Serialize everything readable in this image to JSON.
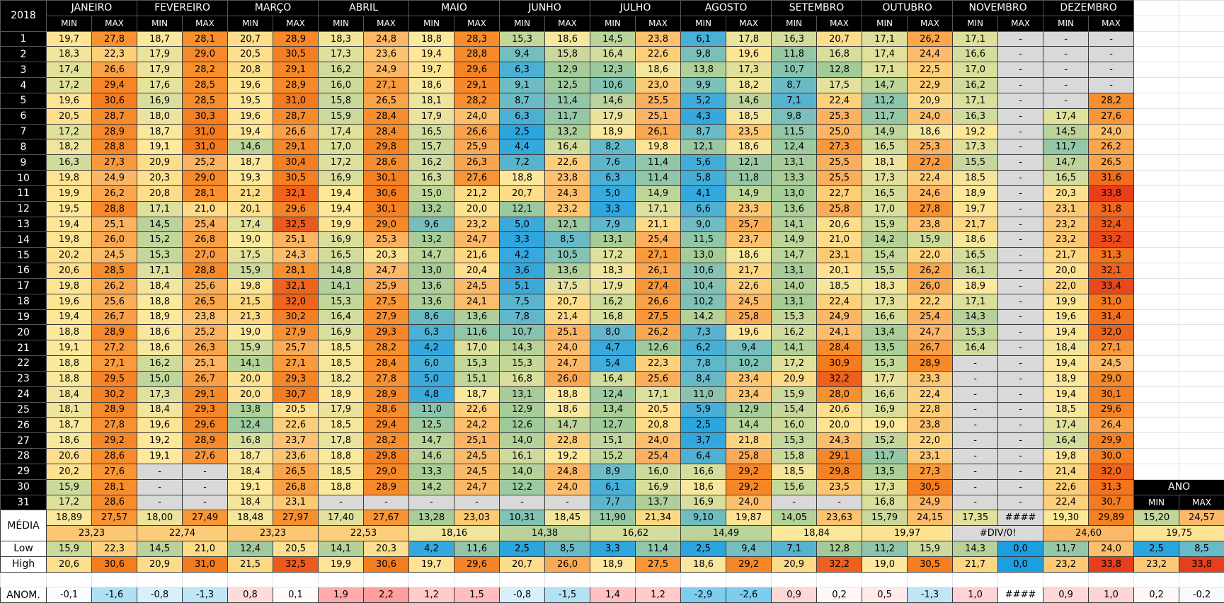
{
  "year": "2018",
  "column_labels": [
    "MIN",
    "MAX"
  ],
  "days": [
    1,
    2,
    3,
    4,
    5,
    6,
    7,
    8,
    9,
    10,
    11,
    12,
    13,
    14,
    15,
    16,
    17,
    18,
    19,
    20,
    21,
    22,
    23,
    24,
    25,
    26,
    27,
    28,
    29,
    30,
    31
  ],
  "row_labels": {
    "media": "MÉDIA",
    "low": "Low",
    "high": "High",
    "anom": "ANOM."
  },
  "months": [
    {
      "name": "JANEIRO",
      "min": [
        "19,7",
        "18,3",
        "17,4",
        "17,2",
        "19,6",
        "20,5",
        "17,2",
        "18,2",
        "16,3",
        "19,8",
        "19,9",
        "19,5",
        "19,4",
        "19,8",
        "20,2",
        "20,6",
        "19,8",
        "19,6",
        "19,4",
        "18,8",
        "19,1",
        "18,8",
        "18,8",
        "18,4",
        "18,1",
        "18,7",
        "18,6",
        "20,6",
        "20,2",
        "15,9",
        "17,2"
      ],
      "max": [
        "27,8",
        "22,3",
        "26,6",
        "29,4",
        "30,6",
        "28,7",
        "28,9",
        "28,8",
        "27,3",
        "24,9",
        "26,2",
        "28,8",
        "25,1",
        "26,0",
        "24,5",
        "28,5",
        "26,2",
        "25,6",
        "26,7",
        "28,9",
        "27,2",
        "27,1",
        "29,5",
        "30,2",
        "28,9",
        "27,8",
        "29,2",
        "28,6",
        "27,6",
        "28,1",
        "28,6"
      ],
      "media_min": "18,89",
      "media_max": "27,57",
      "media": "23,23",
      "low_min": "15,9",
      "low_max": "22,3",
      "high_min": "20,6",
      "high_max": "30,6",
      "anom_min": "-0,1",
      "anom_max": "-1,6"
    },
    {
      "name": "FEVEREIRO",
      "min": [
        "18,7",
        "17,9",
        "17,9",
        "17,6",
        "16,9",
        "18,0",
        "18,7",
        "19,1",
        "20,9",
        "20,3",
        "20,8",
        "17,1",
        "14,5",
        "15,2",
        "15,3",
        "17,1",
        "18,4",
        "18,8",
        "18,9",
        "18,6",
        "18,6",
        "16,2",
        "15,0",
        "17,3",
        "18,4",
        "19,6",
        "19,2",
        "19,1",
        "-",
        "-",
        "-"
      ],
      "max": [
        "28,1",
        "29,0",
        "28,2",
        "28,5",
        "28,5",
        "30,3",
        "31,0",
        "31,0",
        "25,2",
        "29,0",
        "28,1",
        "21,0",
        "25,4",
        "26,8",
        "27,0",
        "28,8",
        "25,6",
        "26,5",
        "23,8",
        "25,2",
        "26,3",
        "25,1",
        "26,7",
        "29,1",
        "29,3",
        "29,6",
        "28,9",
        "27,6",
        "-",
        "-",
        "-"
      ],
      "media_min": "18,00",
      "media_max": "27,49",
      "media": "22,74",
      "low_min": "14,5",
      "low_max": "21,0",
      "high_min": "20,9",
      "high_max": "31,0",
      "anom_min": "-0,8",
      "anom_max": "-1,3"
    },
    {
      "name": "MARÇO",
      "min": [
        "20,7",
        "20,5",
        "20,8",
        "19,6",
        "19,5",
        "19,6",
        "19,4",
        "14,6",
        "18,7",
        "19,3",
        "21,2",
        "20,1",
        "17,4",
        "19,0",
        "17,5",
        "15,9",
        "19,8",
        "21,5",
        "21,3",
        "19,0",
        "15,9",
        "14,1",
        "20,0",
        "20,0",
        "13,8",
        "12,4",
        "16,8",
        "18,7",
        "18,4",
        "19,1",
        "18,4"
      ],
      "max": [
        "28,9",
        "30,5",
        "29,1",
        "28,9",
        "31,0",
        "28,7",
        "26,6",
        "29,1",
        "30,4",
        "30,5",
        "32,1",
        "29,6",
        "32,5",
        "25,1",
        "24,3",
        "28,1",
        "32,1",
        "32,0",
        "30,2",
        "27,9",
        "25,7",
        "27,1",
        "29,3",
        "30,7",
        "20,5",
        "22,6",
        "23,7",
        "23,6",
        "26,5",
        "26,8",
        "23,1"
      ],
      "media_min": "18,48",
      "media_max": "27,97",
      "media": "23,23",
      "low_min": "12,4",
      "low_max": "20,5",
      "high_min": "21,5",
      "high_max": "32,5",
      "anom_min": "0,8",
      "anom_max": "0,1"
    },
    {
      "name": "ABRIL",
      "min": [
        "18,3",
        "17,3",
        "16,2",
        "16,0",
        "15,8",
        "15,9",
        "17,4",
        "17,0",
        "17,2",
        "16,9",
        "19,4",
        "19,4",
        "19,9",
        "16,9",
        "16,5",
        "14,8",
        "14,1",
        "15,3",
        "16,4",
        "16,9",
        "18,5",
        "18,5",
        "18,2",
        "18,9",
        "17,9",
        "18,5",
        "17,8",
        "18,8",
        "18,5",
        "18,8",
        "-"
      ],
      "max": [
        "24,8",
        "23,6",
        "24,9",
        "27,1",
        "26,5",
        "28,4",
        "28,4",
        "29,8",
        "28,6",
        "30,1",
        "30,6",
        "30,1",
        "29,0",
        "25,3",
        "20,3",
        "24,7",
        "25,9",
        "27,5",
        "27,9",
        "29,3",
        "28,2",
        "28,4",
        "27,8",
        "28,9",
        "28,6",
        "29,4",
        "28,2",
        "29,8",
        "29,0",
        "28,9",
        "-"
      ],
      "media_min": "17,40",
      "media_max": "27,67",
      "media": "22,53",
      "low_min": "14,1",
      "low_max": "20,3",
      "high_min": "19,9",
      "high_max": "30,6",
      "anom_min": "1,9",
      "anom_max": "2,2"
    },
    {
      "name": "MAIO",
      "min": [
        "18,8",
        "19,4",
        "19,7",
        "18,6",
        "18,1",
        "17,9",
        "16,5",
        "15,7",
        "16,2",
        "16,3",
        "15,0",
        "13,2",
        "9,6",
        "13,2",
        "14,7",
        "13,0",
        "13,6",
        "13,6",
        "8,6",
        "6,3",
        "4,2",
        "6,0",
        "5,0",
        "4,8",
        "11,0",
        "12,5",
        "14,7",
        "14,6",
        "13,3",
        "14,2",
        "-"
      ],
      "max": [
        "28,3",
        "28,8",
        "29,6",
        "29,1",
        "28,2",
        "24,0",
        "26,6",
        "25,9",
        "26,3",
        "27,6",
        "21,2",
        "20,0",
        "23,2",
        "24,7",
        "21,6",
        "20,4",
        "24,5",
        "24,1",
        "13,6",
        "11,6",
        "17,0",
        "15,3",
        "15,1",
        "18,7",
        "22,6",
        "24,2",
        "25,1",
        "24,5",
        "24,5",
        "24,7",
        "-"
      ],
      "media_min": "13,28",
      "media_max": "23,03",
      "media": "18,16",
      "low_min": "4,2",
      "low_max": "11,6",
      "high_min": "19,7",
      "high_max": "29,6",
      "anom_min": "1,2",
      "anom_max": "1,5"
    },
    {
      "name": "JUNHO",
      "min": [
        "15,3",
        "9,4",
        "6,3",
        "9,1",
        "8,7",
        "6,3",
        "2,5",
        "4,4",
        "7,2",
        "18,8",
        "20,7",
        "12,1",
        "5,0",
        "3,3",
        "4,2",
        "3,6",
        "5,1",
        "7,5",
        "7,8",
        "10,7",
        "14,3",
        "15,3",
        "16,8",
        "13,1",
        "12,9",
        "12,6",
        "14,0",
        "16,1",
        "14,0",
        "12,2",
        "-"
      ],
      "max": [
        "18,6",
        "15,8",
        "12,9",
        "12,5",
        "11,4",
        "11,7",
        "13,2",
        "16,4",
        "22,6",
        "23,8",
        "24,3",
        "23,2",
        "12,1",
        "8,5",
        "10,5",
        "13,6",
        "17,5",
        "20,7",
        "21,4",
        "25,1",
        "24,0",
        "24,7",
        "26,0",
        "18,8",
        "18,6",
        "14,7",
        "22,8",
        "19,2",
        "24,8",
        "24,0",
        "-"
      ],
      "media_min": "10,31",
      "media_max": "18,45",
      "media": "14,38",
      "low_min": "2,5",
      "low_max": "8,5",
      "high_min": "20,7",
      "high_max": "26,0",
      "anom_min": "-0,8",
      "anom_max": "-1,5"
    },
    {
      "name": "JULHO",
      "min": [
        "14,5",
        "16,4",
        "12,3",
        "10,6",
        "14,6",
        "17,9",
        "18,9",
        "8,2",
        "7,6",
        "6,3",
        "5,0",
        "3,3",
        "7,9",
        "13,1",
        "17,2",
        "18,3",
        "17,9",
        "16,2",
        "16,8",
        "8,0",
        "4,7",
        "5,4",
        "16,4",
        "12,4",
        "13,4",
        "12,7",
        "15,1",
        "15,2",
        "8,9",
        "6,1",
        "7,7"
      ],
      "max": [
        "23,8",
        "22,6",
        "18,6",
        "23,0",
        "25,5",
        "25,1",
        "26,1",
        "19,8",
        "11,4",
        "11,4",
        "14,9",
        "17,1",
        "21,1",
        "25,4",
        "27,1",
        "26,1",
        "27,4",
        "26,6",
        "27,5",
        "26,2",
        "12,6",
        "22,3",
        "25,6",
        "17,1",
        "20,5",
        "20,8",
        "24,0",
        "25,4",
        "16,0",
        "16,9",
        "13,7"
      ],
      "media_min": "11,90",
      "media_max": "21,34",
      "media": "16,62",
      "low_min": "3,3",
      "low_max": "11,4",
      "high_min": "18,9",
      "high_max": "27,5",
      "anom_min": "1,4",
      "anom_max": "1,2"
    },
    {
      "name": "AGOSTO",
      "min": [
        "6,1",
        "9,8",
        "13,8",
        "9,9",
        "5,2",
        "4,3",
        "8,7",
        "12,1",
        "5,6",
        "5,8",
        "4,1",
        "6,6",
        "9,0",
        "11,5",
        "13,0",
        "10,6",
        "10,4",
        "10,2",
        "14,2",
        "7,3",
        "6,2",
        "7,8",
        "8,4",
        "11,0",
        "5,9",
        "2,5",
        "3,7",
        "6,4",
        "16,6",
        "18,6",
        "16,9"
      ],
      "max": [
        "17,8",
        "19,6",
        "17,3",
        "18,2",
        "14,6",
        "18,5",
        "23,5",
        "18,6",
        "12,1",
        "11,8",
        "14,9",
        "23,3",
        "25,7",
        "23,7",
        "18,6",
        "21,7",
        "22,6",
        "24,5",
        "25,8",
        "19,6",
        "9,4",
        "10,2",
        "23,4",
        "23,4",
        "12,9",
        "14,4",
        "21,8",
        "25,8",
        "29,2",
        "29,2",
        "24,0"
      ],
      "media_min": "9,10",
      "media_max": "19,87",
      "media": "14,49",
      "low_min": "2,5",
      "low_max": "9,4",
      "high_min": "18,6",
      "high_max": "29,2",
      "anom_min": "-2,9",
      "anom_max": "-2,6"
    },
    {
      "name": "SETEMBRO",
      "min": [
        "16,3",
        "11,8",
        "10,7",
        "8,7",
        "7,1",
        "9,8",
        "11,5",
        "12,4",
        "13,1",
        "13,3",
        "13,0",
        "13,6",
        "14,1",
        "14,9",
        "14,7",
        "13,1",
        "14,0",
        "13,1",
        "15,3",
        "16,2",
        "14,1",
        "17,2",
        "20,9",
        "15,9",
        "15,4",
        "16,0",
        "15,3",
        "15,8",
        "18,5",
        "15,6",
        "-"
      ],
      "max": [
        "20,7",
        "16,8",
        "12,8",
        "17,5",
        "22,4",
        "25,3",
        "25,0",
        "27,3",
        "25,5",
        "25,5",
        "22,7",
        "25,8",
        "20,6",
        "21,0",
        "23,1",
        "20,1",
        "18,5",
        "22,4",
        "24,9",
        "24,1",
        "28,4",
        "30,9",
        "32,2",
        "28,0",
        "20,6",
        "20,0",
        "24,3",
        "29,1",
        "29,8",
        "23,5",
        "-"
      ],
      "media_min": "14,05",
      "media_max": "23,63",
      "media": "18,84",
      "low_min": "7,1",
      "low_max": "12,8",
      "high_min": "20,9",
      "high_max": "32,2",
      "anom_min": "0,9",
      "anom_max": "0,2"
    },
    {
      "name": "OUTUBRO",
      "min": [
        "17,1",
        "17,4",
        "17,1",
        "14,7",
        "11,2",
        "11,7",
        "14,9",
        "16,5",
        "18,1",
        "17,3",
        "16,5",
        "17,0",
        "15,9",
        "14,2",
        "15,4",
        "15,5",
        "18,3",
        "17,3",
        "16,6",
        "13,4",
        "13,5",
        "15,3",
        "17,7",
        "16,6",
        "16,9",
        "19,0",
        "15,2",
        "11,7",
        "13,5",
        "17,3",
        "16,8"
      ],
      "max": [
        "26,2",
        "24,4",
        "22,5",
        "22,9",
        "20,9",
        "24,0",
        "18,6",
        "25,3",
        "27,2",
        "22,4",
        "24,6",
        "27,8",
        "23,8",
        "15,9",
        "22,0",
        "26,2",
        "26,0",
        "22,2",
        "25,4",
        "24,7",
        "26,7",
        "28,9",
        "23,3",
        "22,4",
        "22,8",
        "23,8",
        "22,0",
        "23,1",
        "27,3",
        "30,5",
        "24,9"
      ],
      "media_min": "15,79",
      "media_max": "24,15",
      "media": "19,97",
      "low_min": "11,2",
      "low_max": "15,9",
      "high_min": "19,0",
      "high_max": "30,5",
      "anom_min": "0,5",
      "anom_max": "-1,3"
    },
    {
      "name": "NOVEMBRO",
      "min": [
        "17,1",
        "16,6",
        "17,0",
        "16,2",
        "17,1",
        "16,3",
        "19,2",
        "17,3",
        "15,5",
        "18,5",
        "18,9",
        "19,7",
        "21,7",
        "18,6",
        "16,5",
        "16,1",
        "18,9",
        "17,1",
        "14,3",
        "15,3",
        "16,4",
        "-",
        "-",
        "-",
        "-",
        "-",
        "-",
        "-",
        "-",
        "-",
        "-"
      ],
      "max": [
        "-",
        "-",
        "-",
        "-",
        "-",
        "-",
        "-",
        "-",
        "-",
        "-",
        "-",
        "-",
        "-",
        "-",
        "-",
        "-",
        "-",
        "-",
        "-",
        "-",
        "-",
        "-",
        "-",
        "-",
        "-",
        "-",
        "-",
        "-",
        "-",
        "-",
        "-"
      ],
      "media_min": "17,35",
      "media_max": "####",
      "media": "#DIV/0!",
      "low_min": "14,3",
      "low_max": "0,0",
      "high_min": "21,7",
      "high_max": "0,0",
      "anom_min": "1,0",
      "anom_max": "####"
    },
    {
      "name": "DEZEMBRO",
      "min": [
        "-",
        "-",
        "-",
        "-",
        "-",
        "17,4",
        "14,5",
        "11,7",
        "14,7",
        "16,5",
        "20,3",
        "23,1",
        "23,2",
        "23,2",
        "21,7",
        "20,0",
        "22,0",
        "19,9",
        "19,6",
        "19,4",
        "18,4",
        "19,4",
        "18,9",
        "19,4",
        "18,5",
        "17,4",
        "16,4",
        "19,8",
        "21,4",
        "22,6",
        "22,4"
      ],
      "max": [
        "-",
        "-",
        "-",
        "-",
        "28,2",
        "27,6",
        "24,0",
        "26,2",
        "26,5",
        "31,6",
        "33,8",
        "31,8",
        "32,4",
        "33,2",
        "31,3",
        "32,1",
        "33,4",
        "31,0",
        "31,4",
        "32,0",
        "27,1",
        "24,5",
        "29,0",
        "30,1",
        "29,6",
        "26,4",
        "29,9",
        "30,0",
        "32,0",
        "31,3",
        "30,7"
      ],
      "media_min": "19,30",
      "media_max": "29,89",
      "media": "24,60",
      "low_min": "11,7",
      "low_max": "24,0",
      "high_min": "23,2",
      "high_max": "33,8",
      "anom_min": "0,9",
      "anom_max": "1,0"
    }
  ],
  "year_summary": {
    "name": "ANO",
    "media_min": "15,20",
    "media_max": "24,57",
    "media": "19,75",
    "low_min": "2,5",
    "low_max": "8,5",
    "high_min": "23,2",
    "high_max": "33,8",
    "anom_min": "0,2",
    "anom_max": "-0,2"
  }
}
